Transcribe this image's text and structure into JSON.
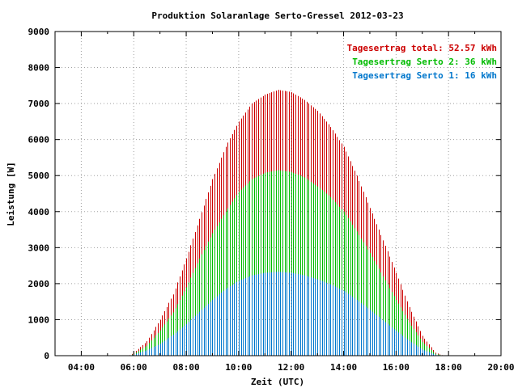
{
  "chart_data": {
    "type": "bar",
    "title": "Produktion Solaranlage Serto-Gressel 2012-03-23",
    "xlabel": "Zeit (UTC)",
    "ylabel": "Leistung [W]",
    "xlim": [
      3,
      20
    ],
    "ylim": [
      0,
      9000
    ],
    "x_ticks": [
      "04:00",
      "06:00",
      "08:00",
      "10:00",
      "12:00",
      "14:00",
      "16:00",
      "18:00",
      "20:00"
    ],
    "y_ticks": [
      "0",
      "1000",
      "2000",
      "3000",
      "4000",
      "5000",
      "6000",
      "7000",
      "8000",
      "9000"
    ],
    "grid": true,
    "legend_position": "top-right",
    "legend": [
      {
        "label": "Tagesertrag total: 52.57 kWh",
        "color": "#cc0000"
      },
      {
        "label": "Tagesertrag Serto 2: 36 kWh",
        "color": "#00bb00"
      },
      {
        "label": "Tagesertrag Serto 1: 16 kWh",
        "color": "#0077cc"
      }
    ],
    "series": [
      {
        "name": "total",
        "color": "#cc0000",
        "sample_interval_minutes": 5,
        "start_time": "05:50",
        "end_time": "17:50",
        "points": [
          [
            5.8,
            0
          ],
          [
            6.0,
            80
          ],
          [
            6.5,
            400
          ],
          [
            7.0,
            1000
          ],
          [
            7.5,
            1700
          ],
          [
            8.0,
            2700
          ],
          [
            8.5,
            3800
          ],
          [
            9.0,
            4900
          ],
          [
            9.5,
            5800
          ],
          [
            10.0,
            6500
          ],
          [
            10.5,
            7000
          ],
          [
            11.0,
            7250
          ],
          [
            11.5,
            7380
          ],
          [
            12.0,
            7320
          ],
          [
            12.5,
            7100
          ],
          [
            13.0,
            6800
          ],
          [
            13.5,
            6350
          ],
          [
            14.0,
            5800
          ],
          [
            14.5,
            5000
          ],
          [
            15.0,
            4100
          ],
          [
            15.5,
            3200
          ],
          [
            16.0,
            2300
          ],
          [
            16.5,
            1350
          ],
          [
            17.0,
            550
          ],
          [
            17.5,
            80
          ],
          [
            17.8,
            0
          ]
        ]
      },
      {
        "name": "Serto 2",
        "color": "#00bb00",
        "points": [
          [
            5.8,
            0
          ],
          [
            6.0,
            50
          ],
          [
            6.5,
            280
          ],
          [
            7.0,
            700
          ],
          [
            7.5,
            1200
          ],
          [
            8.0,
            1900
          ],
          [
            8.5,
            2700
          ],
          [
            9.0,
            3400
          ],
          [
            9.5,
            4000
          ],
          [
            10.0,
            4550
          ],
          [
            10.5,
            4900
          ],
          [
            11.0,
            5080
          ],
          [
            11.5,
            5150
          ],
          [
            12.0,
            5100
          ],
          [
            12.5,
            4950
          ],
          [
            13.0,
            4700
          ],
          [
            13.5,
            4400
          ],
          [
            14.0,
            4000
          ],
          [
            14.5,
            3450
          ],
          [
            15.0,
            2850
          ],
          [
            15.5,
            2200
          ],
          [
            16.0,
            1550
          ],
          [
            16.5,
            920
          ],
          [
            17.0,
            380
          ],
          [
            17.5,
            50
          ],
          [
            17.8,
            0
          ]
        ]
      },
      {
        "name": "Serto 1",
        "color": "#0077cc",
        "points": [
          [
            5.8,
            0
          ],
          [
            6.0,
            30
          ],
          [
            6.5,
            150
          ],
          [
            7.0,
            330
          ],
          [
            7.5,
            580
          ],
          [
            8.0,
            880
          ],
          [
            8.5,
            1220
          ],
          [
            9.0,
            1550
          ],
          [
            9.5,
            1850
          ],
          [
            10.0,
            2080
          ],
          [
            10.5,
            2230
          ],
          [
            11.0,
            2300
          ],
          [
            11.5,
            2330
          ],
          [
            12.0,
            2300
          ],
          [
            12.5,
            2230
          ],
          [
            13.0,
            2120
          ],
          [
            13.5,
            1980
          ],
          [
            14.0,
            1800
          ],
          [
            14.5,
            1550
          ],
          [
            15.0,
            1270
          ],
          [
            15.5,
            980
          ],
          [
            16.0,
            690
          ],
          [
            16.5,
            410
          ],
          [
            17.0,
            170
          ],
          [
            17.5,
            25
          ],
          [
            17.8,
            0
          ]
        ]
      }
    ]
  }
}
